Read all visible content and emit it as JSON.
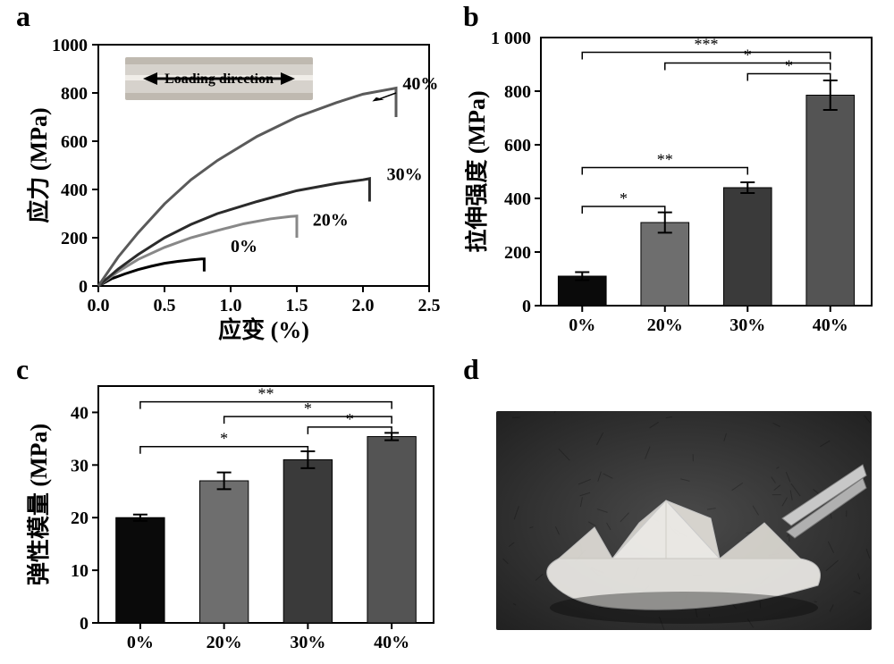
{
  "labels": {
    "a": "a",
    "b": "b",
    "c": "c",
    "d": "d"
  },
  "panelA": {
    "type": "line",
    "xlabel": "应变  (%)",
    "ylabel": "应力  (MPa)",
    "xlim": [
      0,
      2.5
    ],
    "ylim": [
      0,
      1000
    ],
    "xticks": [
      0.0,
      0.5,
      1.0,
      1.5,
      2.0,
      2.5
    ],
    "xticklabels": [
      "0.0",
      "0.5",
      "1.0",
      "1.5",
      "2.0",
      "2.5"
    ],
    "yticks": [
      0,
      200,
      400,
      600,
      800,
      1000
    ],
    "series": [
      {
        "name": "0%",
        "color": "#000000",
        "label_xy": [
          1.0,
          140
        ],
        "points": [
          [
            0,
            0
          ],
          [
            0.1,
            30
          ],
          [
            0.2,
            50
          ],
          [
            0.3,
            68
          ],
          [
            0.4,
            82
          ],
          [
            0.5,
            94
          ],
          [
            0.6,
            102
          ],
          [
            0.7,
            108
          ],
          [
            0.78,
            112
          ],
          [
            0.8,
            112
          ],
          [
            0.8,
            60
          ]
        ]
      },
      {
        "name": "20%",
        "color": "#888888",
        "label_xy": [
          1.62,
          250
        ],
        "points": [
          [
            0,
            0
          ],
          [
            0.15,
            60
          ],
          [
            0.3,
            110
          ],
          [
            0.5,
            160
          ],
          [
            0.7,
            200
          ],
          [
            0.9,
            230
          ],
          [
            1.1,
            258
          ],
          [
            1.3,
            278
          ],
          [
            1.45,
            288
          ],
          [
            1.5,
            290
          ],
          [
            1.5,
            200
          ]
        ]
      },
      {
        "name": "30%",
        "color": "#2b2b2b",
        "label_xy": [
          2.18,
          438
        ],
        "points": [
          [
            0,
            0
          ],
          [
            0.15,
            70
          ],
          [
            0.3,
            130
          ],
          [
            0.5,
            200
          ],
          [
            0.7,
            255
          ],
          [
            0.9,
            300
          ],
          [
            1.2,
            350
          ],
          [
            1.5,
            395
          ],
          [
            1.8,
            425
          ],
          [
            2.0,
            440
          ],
          [
            2.05,
            445
          ],
          [
            2.05,
            350
          ]
        ]
      },
      {
        "name": "40%",
        "color": "#5a5a5a",
        "label_xy": [
          2.3,
          815
        ],
        "points": [
          [
            0,
            0
          ],
          [
            0.15,
            120
          ],
          [
            0.3,
            220
          ],
          [
            0.5,
            340
          ],
          [
            0.7,
            440
          ],
          [
            0.9,
            520
          ],
          [
            1.2,
            620
          ],
          [
            1.5,
            700
          ],
          [
            1.8,
            760
          ],
          [
            2.0,
            795
          ],
          [
            2.2,
            815
          ],
          [
            2.25,
            820
          ],
          [
            2.25,
            700
          ]
        ]
      }
    ],
    "inset": {
      "text": "Loading direction",
      "text_color": "#000000",
      "arrow_color": "#000000",
      "strip_color": "#d6d2cc",
      "strip_highlight": "#f0ede8"
    },
    "border_color": "#000000",
    "bg_color": "#ffffff"
  },
  "panelB": {
    "type": "bar",
    "ylabel": "拉伸强度  (MPa)",
    "categories": [
      "0%",
      "20%",
      "30%",
      "40%"
    ],
    "values": [
      110,
      310,
      440,
      785
    ],
    "errors": [
      15,
      38,
      20,
      55
    ],
    "colors": [
      "#0a0a0a",
      "#6e6e6e",
      "#3a3a3a",
      "#545454"
    ],
    "ylim": [
      0,
      1000
    ],
    "yticks": [
      0,
      200,
      400,
      600,
      800
    ],
    "ytick_labels_left_extra": "1 000",
    "bar_width": 0.58,
    "sig": [
      {
        "from": 0,
        "to": 1,
        "y": 370,
        "label": "*"
      },
      {
        "from": 0,
        "to": 2,
        "y": 515,
        "label": "**"
      },
      {
        "from": 1,
        "to": 3,
        "y": 870,
        "label": "*"
      },
      {
        "from": 2,
        "to": 3,
        "y": 870,
        "label": "*",
        "skip": true
      },
      {
        "from": 0,
        "to": 3,
        "y": 945,
        "label": "***"
      }
    ],
    "border_color": "#000000"
  },
  "panelC": {
    "type": "bar",
    "ylabel": "弹性模量  (MPa)",
    "categories": [
      "0%",
      "20%",
      "30%",
      "40%"
    ],
    "values": [
      20,
      27,
      31,
      35.4
    ],
    "errors": [
      0.6,
      1.6,
      1.6,
      0.7
    ],
    "colors": [
      "#0a0a0a",
      "#6e6e6e",
      "#3a3a3a",
      "#545454"
    ],
    "ylim": [
      0,
      45
    ],
    "yticks": [
      0,
      10,
      20,
      30,
      40
    ],
    "bar_width": 0.58,
    "sig": [
      {
        "from": 0,
        "to": 2,
        "y": 33.5,
        "label": "*"
      },
      {
        "from": 1,
        "to": 3,
        "y": 37.6,
        "label": "*"
      },
      {
        "from": 2,
        "to": 3,
        "y": 37.6,
        "label": "*",
        "skip": true
      },
      {
        "from": 0,
        "to": 3,
        "y": 41.2,
        "label": "**"
      }
    ],
    "border_color": "#000000"
  },
  "panelD": {
    "type": "photo",
    "bg_color": "#3a3a3a",
    "object_color": "#e8e6e2",
    "note": "grayscale photo of folded translucent membrane (paper-boat origami) held by tweezers"
  },
  "global": {
    "label_fontsize": 32,
    "axis_fontsize": 20,
    "axis_label_fontsize": 26,
    "tick_len": 6
  }
}
